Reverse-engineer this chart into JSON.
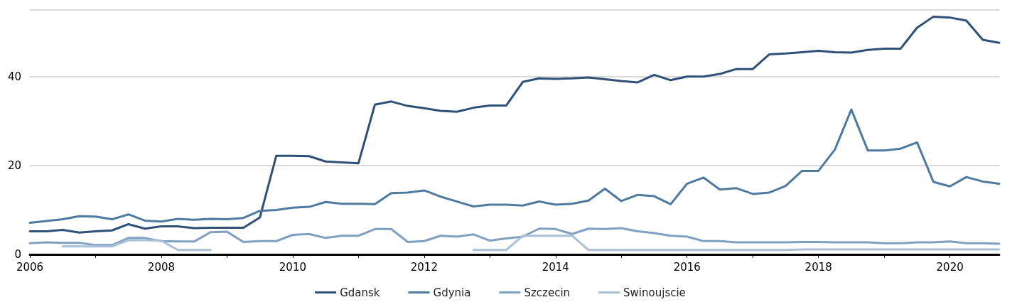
{
  "chart_data": {
    "type": "line",
    "x": [
      2006,
      2006.25,
      2006.5,
      2006.75,
      2007,
      2007.25,
      2007.5,
      2007.75,
      2008,
      2008.25,
      2008.5,
      2008.75,
      2009,
      2009.25,
      2009.5,
      2009.75,
      2010,
      2010.25,
      2010.5,
      2010.75,
      2011,
      2011.25,
      2011.5,
      2011.75,
      2012,
      2012.25,
      2012.5,
      2012.75,
      2013,
      2013.25,
      2013.5,
      2013.75,
      2014,
      2014.25,
      2014.5,
      2014.75,
      2015,
      2015.25,
      2015.5,
      2015.75,
      2016,
      2016.25,
      2016.5,
      2016.75,
      2017,
      2017.25,
      2017.5,
      2017.75,
      2018,
      2018.25,
      2018.5,
      2018.75,
      2019,
      2019.25,
      2019.5,
      2019.75,
      2020,
      2020.25,
      2020.5,
      2020.75
    ],
    "series": [
      {
        "name": "Gdansk",
        "color": "#2f5077",
        "values": [
          5.2,
          5.2,
          5.5,
          4.9,
          5.2,
          5.4,
          6.8,
          5.8,
          6.3,
          6.3,
          5.9,
          6.0,
          6.0,
          6.0,
          8.3,
          22.2,
          22.2,
          22.1,
          20.9,
          20.7,
          20.5,
          33.7,
          34.4,
          33.4,
          32.9,
          32.3,
          32.1,
          33.0,
          33.5,
          33.5,
          38.8,
          39.6,
          39.5,
          39.6,
          39.8,
          39.4,
          39.0,
          38.7,
          40.4,
          39.2,
          40.0,
          40.0,
          40.6,
          41.7,
          41.7,
          45.0,
          45.2,
          45.5,
          45.8,
          45.5,
          45.4,
          46.0,
          46.3,
          46.3,
          51.0,
          53.5,
          53.3,
          52.6,
          48.3,
          47.6
        ]
      },
      {
        "name": "Gdynia",
        "color": "#4f7aa0",
        "values": [
          7.1,
          7.5,
          7.9,
          8.6,
          8.5,
          7.9,
          9.0,
          7.6,
          7.4,
          8.0,
          7.8,
          8.0,
          7.9,
          8.2,
          9.8,
          10.0,
          10.5,
          10.7,
          11.8,
          11.4,
          11.4,
          11.3,
          13.8,
          13.9,
          14.4,
          13.0,
          11.9,
          10.8,
          11.2,
          11.2,
          11.0,
          11.9,
          11.2,
          11.4,
          12.1,
          14.8,
          12.0,
          13.4,
          13.1,
          11.3,
          15.9,
          17.3,
          14.6,
          14.9,
          13.6,
          13.9,
          15.4,
          18.8,
          18.8,
          23.6,
          32.6,
          23.4,
          23.4,
          23.8,
          25.2,
          16.3,
          15.3,
          17.4,
          16.4,
          15.9
        ]
      },
      {
        "name": "Szczecin",
        "color": "#7ea0c2",
        "values": [
          2.5,
          2.7,
          2.6,
          2.6,
          2.1,
          2.1,
          3.7,
          3.7,
          3.0,
          2.9,
          2.9,
          5.0,
          5.1,
          2.8,
          3.0,
          3.0,
          4.4,
          4.6,
          3.7,
          4.2,
          4.2,
          5.7,
          5.7,
          2.8,
          3.0,
          4.2,
          4.0,
          4.5,
          3.1,
          3.6,
          4.0,
          5.8,
          5.7,
          4.6,
          5.8,
          5.7,
          5.9,
          5.2,
          4.8,
          4.2,
          4.0,
          3.0,
          3.0,
          2.7,
          2.7,
          2.7,
          2.7,
          2.8,
          2.8,
          2.7,
          2.7,
          2.7,
          2.5,
          2.5,
          2.7,
          2.7,
          2.9,
          2.5,
          2.5,
          2.4
        ]
      },
      {
        "name": "Swinoujscie",
        "color": "#a8c0d8",
        "values": [
          null,
          null,
          1.8,
          1.8,
          1.8,
          1.8,
          3.2,
          3.2,
          3.1,
          1.0,
          1.0,
          1.0,
          null,
          null,
          null,
          null,
          null,
          null,
          null,
          null,
          null,
          null,
          null,
          null,
          null,
          null,
          null,
          1.0,
          1.0,
          1.0,
          4.2,
          4.2,
          4.2,
          4.2,
          1.0,
          1.0,
          1.0,
          1.0,
          1.0,
          1.0,
          1.0,
          1.0,
          1.0,
          1.0,
          1.0,
          1.0,
          1.0,
          1.1,
          1.1,
          1.1,
          1.1,
          1.1,
          1.1,
          1.1,
          1.1,
          1.1,
          1.1,
          1.1,
          1.1,
          1.1
        ]
      }
    ],
    "xlim": [
      2006,
      2020.75
    ],
    "xticks": [
      2006,
      {
        "value": 2007,
        "label": null
      },
      2008,
      {
        "value": 2009,
        "label": null
      },
      2010,
      {
        "value": 2011,
        "label": null
      },
      2012,
      {
        "value": 2013,
        "label": null
      },
      2014,
      {
        "value": 2015,
        "label": null
      },
      2016,
      {
        "value": 2017,
        "label": null
      },
      2018,
      {
        "value": 2019,
        "label": null
      },
      2020
    ],
    "ylim": [
      0,
      55
    ],
    "yticks": [
      0,
      20,
      40,
      {
        "value": 55,
        "label": null
      }
    ],
    "grid": "y",
    "legend": "bottom",
    "marker": "none",
    "line_style": "solid"
  }
}
